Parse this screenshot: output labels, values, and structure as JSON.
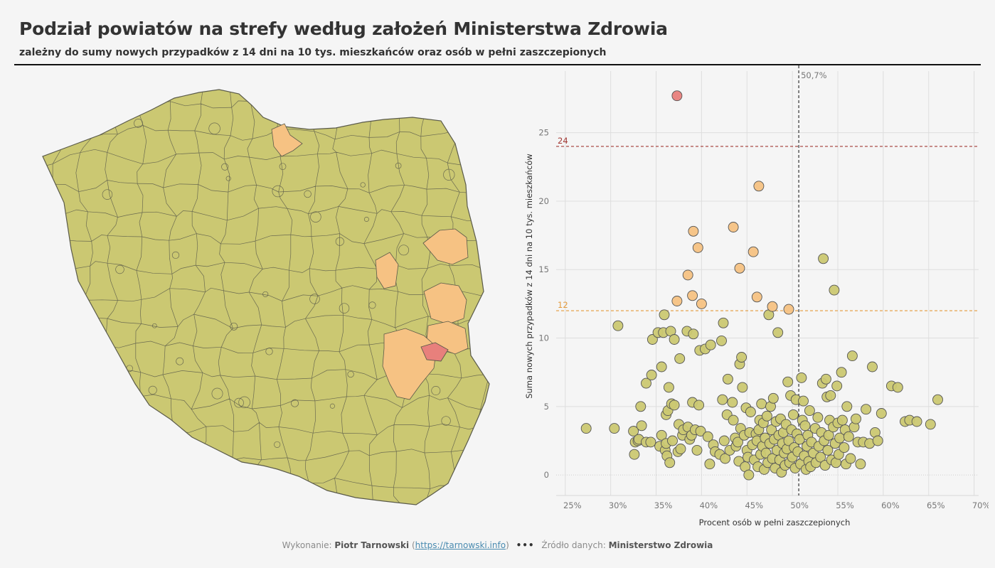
{
  "header": {
    "title": "Podział powiatów na strefy według założeń Ministerstwa Zdrowia",
    "subtitle": "zależny do sumy nowych przypadków z 14 dni na 10 tys. mieszkańców oraz osób w pełni zaszczepionych"
  },
  "footer": {
    "made_by_label": "Wykonanie:",
    "author": "Piotr Tarnowski",
    "link_text": "https://tarnowski.info",
    "separator": "•••",
    "source_label": "Źródło danych:",
    "source": "Ministerstwo Zdrowia"
  },
  "colors": {
    "green": "#cbc872",
    "orange": "#f6c283",
    "red": "#e8807c",
    "border": "#5a5a4a",
    "line_red": "#a33a35",
    "line_orange": "#e39a3c"
  },
  "chart_data": {
    "type": "scatter",
    "xlabel": "Procent osób w pełni zaszczepionych",
    "ylabel": "Suma nowych przypadków z 14 dni na 10 tys. mieszkańców",
    "xlim": [
      24,
      70.5
    ],
    "ylim": [
      -1.5,
      29.5
    ],
    "x_ticks": [
      25,
      30,
      35,
      40,
      45,
      50,
      55,
      60,
      65,
      70
    ],
    "x_tick_labels": [
      "25%",
      "30%",
      "35%",
      "40%",
      "45%",
      "50%",
      "55%",
      "60%",
      "65%",
      "70%"
    ],
    "y_ticks": [
      0,
      5,
      10,
      15,
      20,
      25
    ],
    "y_tick_labels": [
      "0",
      "5",
      "10",
      "15",
      "20",
      "25"
    ],
    "grid": true,
    "reference_lines": [
      {
        "axis": "y",
        "value": 24,
        "label": "24",
        "color": "#a33a35"
      },
      {
        "axis": "y",
        "value": 12,
        "label": "12",
        "color": "#e39a3c"
      },
      {
        "axis": "x",
        "value": 50.7,
        "label": "50,7%",
        "color": "#222"
      }
    ],
    "points_red": [
      [
        37.3,
        27.7
      ]
    ],
    "points_orange": [
      [
        46.3,
        21.1
      ],
      [
        43.5,
        18.1
      ],
      [
        39.1,
        17.8
      ],
      [
        39.6,
        16.6
      ],
      [
        45.7,
        16.3
      ],
      [
        44.2,
        15.1
      ],
      [
        38.5,
        14.6
      ],
      [
        39.0,
        13.1
      ],
      [
        46.1,
        13.0
      ],
      [
        37.3,
        12.7
      ],
      [
        40.0,
        12.5
      ],
      [
        47.8,
        12.3
      ],
      [
        49.6,
        12.1
      ]
    ],
    "points_green": [
      [
        27.3,
        3.4
      ],
      [
        30.4,
        3.4
      ],
      [
        30.8,
        10.9
      ],
      [
        32.5,
        3.2
      ],
      [
        32.6,
        1.5
      ],
      [
        32.7,
        2.4
      ],
      [
        33.0,
        2.5
      ],
      [
        33.1,
        2.6
      ],
      [
        33.3,
        5.0
      ],
      [
        33.4,
        3.6
      ],
      [
        33.9,
        2.4
      ],
      [
        33.9,
        6.7
      ],
      [
        34.4,
        2.4
      ],
      [
        34.5,
        7.3
      ],
      [
        34.6,
        9.9
      ],
      [
        35.2,
        10.4
      ],
      [
        35.4,
        2.1
      ],
      [
        35.6,
        2.9
      ],
      [
        35.6,
        7.9
      ],
      [
        35.8,
        10.4
      ],
      [
        35.9,
        11.7
      ],
      [
        36.0,
        1.8
      ],
      [
        36.1,
        2.3
      ],
      [
        36.1,
        4.4
      ],
      [
        36.2,
        1.4
      ],
      [
        36.3,
        4.7
      ],
      [
        36.4,
        6.4
      ],
      [
        36.5,
        0.9
      ],
      [
        36.6,
        10.5
      ],
      [
        36.7,
        5.2
      ],
      [
        36.8,
        2.5
      ],
      [
        37.0,
        9.9
      ],
      [
        37.0,
        5.1
      ],
      [
        37.4,
        1.7
      ],
      [
        37.5,
        3.7
      ],
      [
        37.6,
        8.5
      ],
      [
        37.7,
        1.9
      ],
      [
        37.9,
        2.9
      ],
      [
        38.0,
        3.3
      ],
      [
        38.4,
        10.5
      ],
      [
        38.5,
        3.5
      ],
      [
        38.7,
        2.6
      ],
      [
        38.9,
        2.9
      ],
      [
        39.0,
        5.3
      ],
      [
        39.1,
        10.3
      ],
      [
        39.3,
        3.3
      ],
      [
        39.5,
        1.8
      ],
      [
        39.7,
        5.1
      ],
      [
        39.8,
        9.1
      ],
      [
        39.9,
        3.2
      ],
      [
        40.4,
        9.2
      ],
      [
        40.7,
        2.8
      ],
      [
        40.9,
        0.8
      ],
      [
        41.0,
        9.5
      ],
      [
        41.3,
        2.2
      ],
      [
        41.5,
        1.7
      ],
      [
        42.0,
        1.5
      ],
      [
        42.2,
        9.8
      ],
      [
        42.3,
        5.5
      ],
      [
        42.4,
        11.1
      ],
      [
        42.5,
        2.5
      ],
      [
        42.6,
        1.2
      ],
      [
        42.8,
        4.4
      ],
      [
        42.9,
        7.0
      ],
      [
        43.1,
        1.8
      ],
      [
        43.4,
        5.3
      ],
      [
        43.5,
        4.0
      ],
      [
        43.7,
        2.7
      ],
      [
        43.8,
        2.1
      ],
      [
        44.0,
        2.4
      ],
      [
        44.1,
        1.0
      ],
      [
        44.2,
        8.1
      ],
      [
        44.3,
        3.4
      ],
      [
        44.4,
        8.6
      ],
      [
        44.5,
        6.4
      ],
      [
        44.7,
        2.9
      ],
      [
        44.8,
        0.6
      ],
      [
        44.9,
        4.9
      ],
      [
        45.0,
        1.8
      ],
      [
        45.1,
        1.3
      ],
      [
        45.2,
        0.0
      ],
      [
        45.3,
        3.1
      ],
      [
        45.4,
        4.6
      ],
      [
        45.6,
        2.2
      ],
      [
        45.8,
        1.1
      ],
      [
        46.0,
        3.0
      ],
      [
        46.1,
        2.5
      ],
      [
        46.2,
        0.6
      ],
      [
        46.3,
        3.3
      ],
      [
        46.4,
        4.0
      ],
      [
        46.5,
        1.5
      ],
      [
        46.6,
        5.2
      ],
      [
        46.7,
        2.1
      ],
      [
        46.8,
        3.8
      ],
      [
        46.9,
        0.4
      ],
      [
        47.0,
        2.7
      ],
      [
        47.1,
        1.6
      ],
      [
        47.2,
        4.3
      ],
      [
        47.3,
        0.9
      ],
      [
        47.4,
        11.7
      ],
      [
        47.5,
        2.3
      ],
      [
        47.6,
        5.0
      ],
      [
        47.7,
        3.3
      ],
      [
        47.8,
        1.2
      ],
      [
        47.9,
        5.6
      ],
      [
        48.0,
        2.6
      ],
      [
        48.1,
        0.5
      ],
      [
        48.2,
        3.9
      ],
      [
        48.3,
        1.8
      ],
      [
        48.4,
        10.4
      ],
      [
        48.5,
        2.9
      ],
      [
        48.6,
        1.1
      ],
      [
        48.7,
        4.1
      ],
      [
        48.8,
        0.2
      ],
      [
        48.9,
        2.3
      ],
      [
        49.0,
        3.1
      ],
      [
        49.1,
        1.6
      ],
      [
        49.2,
        0.7
      ],
      [
        49.3,
        3.7
      ],
      [
        49.4,
        1.9
      ],
      [
        49.5,
        6.8
      ],
      [
        49.6,
        2.5
      ],
      [
        49.7,
        0.9
      ],
      [
        49.8,
        5.8
      ],
      [
        49.9,
        3.3
      ],
      [
        50.0,
        1.3
      ],
      [
        50.1,
        4.4
      ],
      [
        50.2,
        2.0
      ],
      [
        50.3,
        0.5
      ],
      [
        50.4,
        5.5
      ],
      [
        50.5,
        3.0
      ],
      [
        50.6,
        1.7
      ],
      [
        50.8,
        2.6
      ],
      [
        50.9,
        0.8
      ],
      [
        51.0,
        7.1
      ],
      [
        51.1,
        4.0
      ],
      [
        51.2,
        5.4
      ],
      [
        51.3,
        1.4
      ],
      [
        51.4,
        3.6
      ],
      [
        51.5,
        0.4
      ],
      [
        51.6,
        2.1
      ],
      [
        51.7,
        2.9
      ],
      [
        51.8,
        1.0
      ],
      [
        51.9,
        4.7
      ],
      [
        52.0,
        0.6
      ],
      [
        52.1,
        2.4
      ],
      [
        52.3,
        1.6
      ],
      [
        52.5,
        3.4
      ],
      [
        52.6,
        0.9
      ],
      [
        52.8,
        4.2
      ],
      [
        52.9,
        2.1
      ],
      [
        53.1,
        1.3
      ],
      [
        53.2,
        3.1
      ],
      [
        53.3,
        6.7
      ],
      [
        53.4,
        15.8
      ],
      [
        53.5,
        2.5
      ],
      [
        53.6,
        0.7
      ],
      [
        53.7,
        7.0
      ],
      [
        53.8,
        5.7
      ],
      [
        53.9,
        1.8
      ],
      [
        54.0,
        2.9
      ],
      [
        54.1,
        4.0
      ],
      [
        54.2,
        5.8
      ],
      [
        54.3,
        1.1
      ],
      [
        54.5,
        3.5
      ],
      [
        54.6,
        13.5
      ],
      [
        54.7,
        2.3
      ],
      [
        54.8,
        0.9
      ],
      [
        54.9,
        6.5
      ],
      [
        55.0,
        3.8
      ],
      [
        55.1,
        1.5
      ],
      [
        55.2,
        2.7
      ],
      [
        55.4,
        7.5
      ],
      [
        55.5,
        4.0
      ],
      [
        55.7,
        2.0
      ],
      [
        55.8,
        3.3
      ],
      [
        55.9,
        0.8
      ],
      [
        56.0,
        5.0
      ],
      [
        56.2,
        2.8
      ],
      [
        56.4,
        1.2
      ],
      [
        56.6,
        8.7
      ],
      [
        56.8,
        3.5
      ],
      [
        57.0,
        4.1
      ],
      [
        57.2,
        2.4
      ],
      [
        57.5,
        0.8
      ],
      [
        57.8,
        2.4
      ],
      [
        58.1,
        4.8
      ],
      [
        58.5,
        2.3
      ],
      [
        58.8,
        7.9
      ],
      [
        59.1,
        3.1
      ],
      [
        59.4,
        2.5
      ],
      [
        59.8,
        4.5
      ],
      [
        60.9,
        6.5
      ],
      [
        61.6,
        6.4
      ],
      [
        62.4,
        3.9
      ],
      [
        62.9,
        4.0
      ],
      [
        63.7,
        3.9
      ],
      [
        65.2,
        3.7
      ],
      [
        66.0,
        5.5
      ]
    ]
  }
}
